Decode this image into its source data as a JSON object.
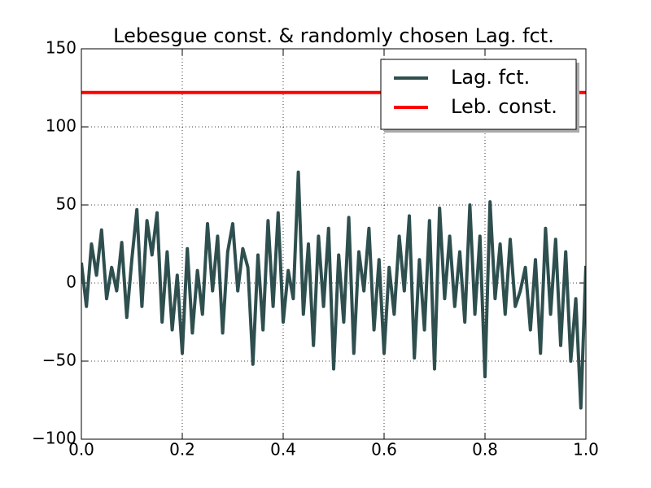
{
  "chart_data": {
    "type": "line",
    "title": "Lebesgue const. & randomly chosen Lag. fct.",
    "series": [
      {
        "name": "Lag. fct.",
        "color": "#2f4f4f",
        "x": [
          0,
          0.01,
          0.02,
          0.03,
          0.04,
          0.05,
          0.06,
          0.07,
          0.08,
          0.09,
          0.1,
          0.11,
          0.12,
          0.13,
          0.14,
          0.15,
          0.16,
          0.17,
          0.18,
          0.19,
          0.2,
          0.21,
          0.22,
          0.23,
          0.24,
          0.25,
          0.26,
          0.27,
          0.28,
          0.29,
          0.3,
          0.31,
          0.32,
          0.33,
          0.34,
          0.35,
          0.36,
          0.37,
          0.38,
          0.39,
          0.4,
          0.41,
          0.42,
          0.43,
          0.44,
          0.45,
          0.46,
          0.47,
          0.48,
          0.49,
          0.5,
          0.51,
          0.52,
          0.53,
          0.54,
          0.55,
          0.56,
          0.57,
          0.58,
          0.59,
          0.6,
          0.61,
          0.62,
          0.63,
          0.64,
          0.65,
          0.66,
          0.67,
          0.68,
          0.69,
          0.7,
          0.71,
          0.72,
          0.73,
          0.74,
          0.75,
          0.76,
          0.77,
          0.78,
          0.79,
          0.8,
          0.81,
          0.82,
          0.83,
          0.84,
          0.85,
          0.86,
          0.87,
          0.88,
          0.89,
          0.9,
          0.91,
          0.92,
          0.93,
          0.94,
          0.95,
          0.96,
          0.97,
          0.98,
          0.99,
          1
        ],
        "values": [
          13,
          -15,
          25,
          5,
          34,
          -10,
          10,
          -5,
          26,
          -22,
          15,
          47,
          -15,
          40,
          18,
          45,
          -25,
          20,
          -30,
          5,
          -45,
          22,
          -32,
          8,
          -20,
          38,
          -5,
          30,
          -32,
          20,
          38,
          -5,
          22,
          10,
          -52,
          18,
          -30,
          40,
          -15,
          45,
          -25,
          8,
          -10,
          71,
          -20,
          25,
          -40,
          30,
          -15,
          35,
          -55,
          18,
          -25,
          42,
          -45,
          20,
          -5,
          35,
          -30,
          15,
          -45,
          10,
          -20,
          30,
          -5,
          43,
          -48,
          15,
          -30,
          40,
          -55,
          48,
          -10,
          30,
          -15,
          20,
          -25,
          50,
          -20,
          30,
          -60,
          52,
          -10,
          25,
          -20,
          28,
          -15,
          -5,
          10,
          -30,
          15,
          -45,
          35,
          -20,
          28,
          -40,
          20,
          -50,
          -10,
          -80,
          11
        ]
      },
      {
        "name": "Leb. const.",
        "color": "#ff0000",
        "x": [
          0,
          1
        ],
        "values": [
          122,
          122
        ]
      }
    ],
    "xlim": [
      0,
      1
    ],
    "xticks": [
      {
        "value": 0,
        "label": "0.0"
      },
      0.2,
      0.4,
      0.6,
      0.8,
      {
        "value": 1,
        "label": "1.0"
      }
    ],
    "ylim": [
      -100,
      150
    ],
    "yticks": [
      {
        "value": -100,
        "label": "−100"
      },
      {
        "value": -50,
        "label": "−50"
      },
      0,
      50,
      100,
      150
    ],
    "grid": true,
    "legend": "upper right"
  }
}
